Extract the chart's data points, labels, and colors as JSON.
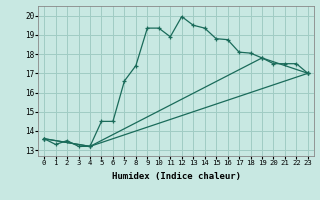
{
  "xlabel": "Humidex (Indice chaleur)",
  "xlim": [
    -0.5,
    23.5
  ],
  "ylim": [
    12.7,
    20.5
  ],
  "xticks": [
    0,
    1,
    2,
    3,
    4,
    5,
    6,
    7,
    8,
    9,
    10,
    11,
    12,
    13,
    14,
    15,
    16,
    17,
    18,
    19,
    20,
    21,
    22,
    23
  ],
  "yticks": [
    13,
    14,
    15,
    16,
    17,
    18,
    19,
    20
  ],
  "bg_color": "#c8e8e2",
  "grid_color": "#a0ccc4",
  "line_color": "#1a6b5a",
  "line1_x": [
    0,
    1,
    2,
    3,
    4,
    5,
    6,
    7,
    8,
    9,
    10,
    11,
    12,
    13,
    14,
    15,
    16,
    17,
    18,
    19,
    20,
    21,
    22,
    23
  ],
  "line1_y": [
    13.6,
    13.3,
    13.5,
    13.2,
    13.2,
    14.5,
    14.5,
    16.6,
    17.4,
    19.35,
    19.35,
    18.9,
    19.95,
    19.5,
    19.35,
    18.8,
    18.75,
    18.1,
    18.05,
    17.8,
    17.5,
    17.5,
    17.5,
    17.0
  ],
  "line2_x": [
    0,
    4,
    23
  ],
  "line2_y": [
    13.6,
    13.2,
    17.0
  ],
  "line3_x": [
    0,
    4,
    19,
    23
  ],
  "line3_y": [
    13.6,
    13.2,
    17.8,
    17.0
  ]
}
